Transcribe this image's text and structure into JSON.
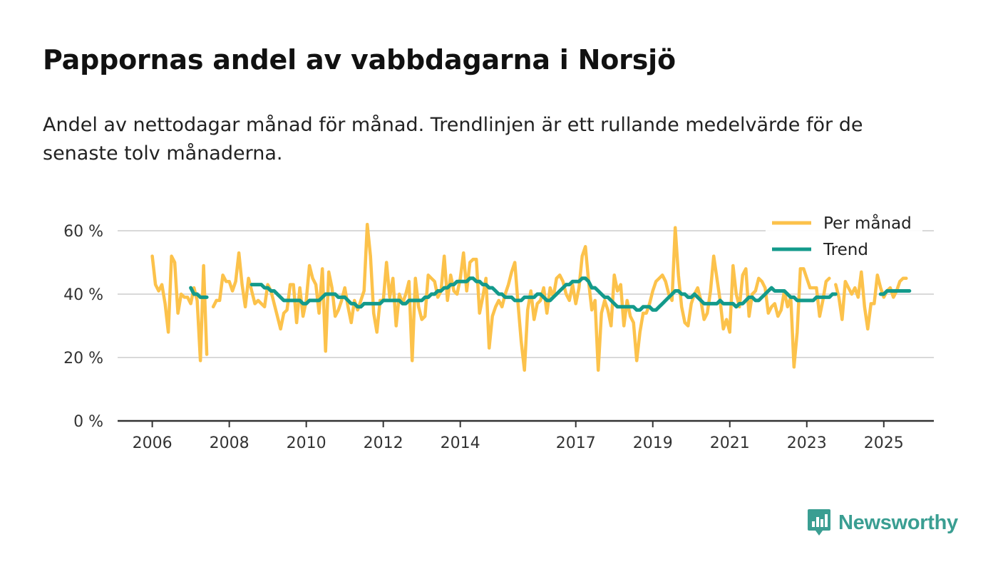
{
  "header": {
    "title": "Pappornas andel av vabbdagarna i Norsjö",
    "subtitle": "Andel av nettodagar månad för månad. Trendlinjen är ett rullande medelvärde för de senaste tolv månaderna."
  },
  "brand": {
    "name": "Newsworthy",
    "color": "#3a9e92"
  },
  "colors": {
    "monthly": "#fcc24b",
    "trend": "#139a8b",
    "grid": "#d9d9d9",
    "axis": "#333333"
  },
  "chart_data": {
    "type": "line",
    "title": "Pappornas andel av vabbdagarna i Norsjö",
    "xlabel": "",
    "ylabel": "",
    "x_range": [
      2005.1,
      2026.3
    ],
    "ylim": [
      0,
      60
    ],
    "y_ticks": [
      0,
      20,
      40,
      60
    ],
    "y_tick_labels": [
      "0 %",
      "20 %",
      "40 %",
      "60 %"
    ],
    "x_ticks": [
      2006,
      2008,
      2010,
      2012,
      2014,
      2017,
      2019,
      2021,
      2023,
      2025
    ],
    "x_tick_labels": [
      "2006",
      "2008",
      "2010",
      "2012",
      "2014",
      "2017",
      "2019",
      "2021",
      "2023",
      "2025"
    ],
    "grid": true,
    "legend": {
      "position": "top-right",
      "entries": [
        "Per månad",
        "Trend"
      ]
    },
    "start": 2006.0,
    "step": 0.0833333,
    "series": [
      {
        "name": "Per månad",
        "color": "#fcc24b",
        "values": [
          52,
          43,
          41,
          43,
          37,
          28,
          52,
          50,
          34,
          40,
          39,
          39,
          37,
          42,
          38,
          19,
          49,
          21,
          null,
          36,
          38,
          38,
          46,
          44,
          44,
          41,
          44,
          53,
          43,
          36,
          45,
          41,
          37,
          38,
          37,
          36,
          43,
          41,
          37,
          33,
          29,
          34,
          35,
          43,
          43,
          31,
          42,
          33,
          38,
          49,
          45,
          43,
          34,
          48,
          22,
          47,
          42,
          33,
          35,
          38,
          42,
          36,
          31,
          38,
          35,
          38,
          41,
          62,
          52,
          34,
          28,
          38,
          38,
          50,
          39,
          45,
          30,
          40,
          37,
          40,
          44,
          19,
          45,
          36,
          32,
          33,
          46,
          45,
          44,
          39,
          41,
          52,
          38,
          46,
          41,
          40,
          45,
          53,
          41,
          50,
          51,
          51,
          34,
          39,
          45,
          23,
          33,
          36,
          38,
          36,
          40,
          43,
          47,
          50,
          37,
          25,
          16,
          35,
          41,
          32,
          37,
          38,
          42,
          34,
          42,
          39,
          45,
          46,
          44,
          40,
          38,
          43,
          37,
          42,
          52,
          55,
          44,
          35,
          38,
          16,
          34,
          38,
          35,
          30,
          46,
          41,
          43,
          30,
          38,
          33,
          31,
          19,
          28,
          34,
          34,
          37,
          41,
          44,
          45,
          46,
          44,
          40,
          38,
          61,
          46,
          36,
          31,
          30,
          37,
          40,
          42,
          38,
          32,
          34,
          41,
          52,
          45,
          38,
          29,
          32,
          28,
          49,
          40,
          36,
          46,
          48,
          33,
          40,
          41,
          45,
          44,
          42,
          34,
          36,
          37,
          33,
          35,
          41,
          36,
          39,
          17,
          28,
          48,
          48,
          45,
          42,
          42,
          42,
          33,
          38,
          44,
          45,
          null,
          43,
          39,
          32,
          44,
          42,
          40,
          42,
          39,
          47,
          36,
          29,
          37,
          37,
          46,
          42,
          39,
          41,
          42,
          39,
          41,
          44,
          45,
          45
        ]
      },
      {
        "name": "Trend",
        "color": "#139a8b",
        "values": [
          null,
          null,
          null,
          null,
          null,
          null,
          null,
          null,
          null,
          null,
          null,
          null,
          42,
          40,
          40,
          39,
          39,
          39,
          null,
          null,
          null,
          null,
          null,
          null,
          null,
          null,
          null,
          null,
          null,
          null,
          null,
          43,
          43,
          43,
          43,
          42,
          42,
          41,
          41,
          40,
          39,
          38,
          38,
          38,
          38,
          38,
          38,
          37,
          37,
          38,
          38,
          38,
          38,
          39,
          40,
          40,
          40,
          40,
          39,
          39,
          39,
          38,
          37,
          37,
          36,
          36,
          37,
          37,
          37,
          37,
          37,
          37,
          38,
          38,
          38,
          38,
          38,
          38,
          37,
          37,
          38,
          38,
          38,
          38,
          38,
          39,
          39,
          40,
          40,
          41,
          41,
          42,
          42,
          43,
          43,
          44,
          44,
          44,
          44,
          45,
          45,
          44,
          44,
          43,
          43,
          42,
          42,
          41,
          40,
          40,
          39,
          39,
          39,
          38,
          38,
          38,
          39,
          39,
          39,
          39,
          40,
          40,
          39,
          38,
          38,
          39,
          40,
          41,
          42,
          43,
          43,
          44,
          44,
          44,
          45,
          45,
          44,
          42,
          42,
          41,
          40,
          39,
          39,
          38,
          37,
          36,
          36,
          36,
          36,
          36,
          36,
          35,
          35,
          36,
          36,
          36,
          35,
          35,
          36,
          37,
          38,
          39,
          40,
          41,
          41,
          40,
          40,
          39,
          39,
          40,
          39,
          38,
          37,
          37,
          37,
          37,
          37,
          38,
          37,
          37,
          37,
          37,
          36,
          37,
          37,
          38,
          39,
          39,
          38,
          38,
          39,
          40,
          41,
          42,
          41,
          41,
          41,
          41,
          40,
          39,
          39,
          38,
          38,
          38,
          38,
          38,
          38,
          39,
          39,
          39,
          39,
          39,
          40,
          40,
          null,
          null,
          null,
          null,
          null,
          null,
          null,
          null,
          null,
          null,
          null,
          null,
          null,
          40,
          40,
          41,
          41,
          41,
          41,
          41,
          41,
          41,
          41
        ]
      }
    ]
  }
}
